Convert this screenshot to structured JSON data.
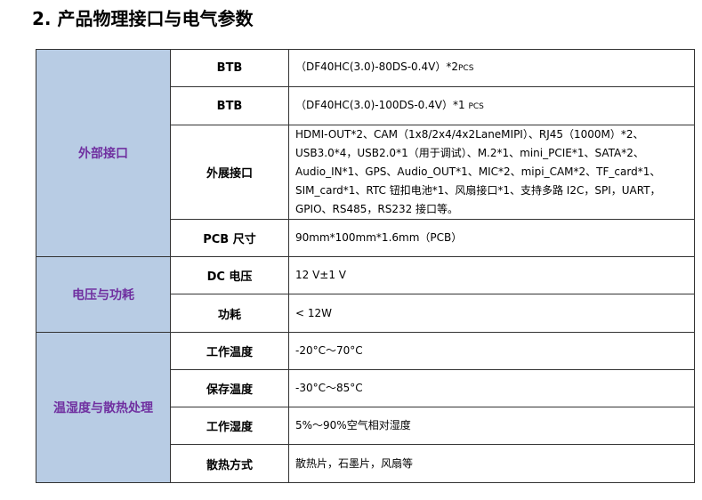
{
  "title": "2. 产品物理接口与电气参数",
  "groups": [
    {
      "category": "外部接口",
      "rows": [
        {
          "key": "BTB",
          "value": "（DF40HC(3.0)-80DS-0.4V）*2",
          "unit": "PCS"
        },
        {
          "key": "BTB",
          "value": "（DF40HC(3.0)-100DS-0.4V）*1 ",
          "unit": "PCS"
        },
        {
          "key": "外展接口",
          "value": "HDMI-OUT*2、CAM（1x8/2x4/4x2LaneMIPI）、RJ45（1000M）*2、USB3.0*4，USB2.0*1（用于调试）、M.2*1、mini_PCIE*1、SATA*2、Audio_IN*1、GPS、Audio_OUT*1、MIC*2、mipi_CAM*2、TF_card*1、SIM_card*1、RTC 钮扣电池*1、风扇接口*1、支持多路 I2C，SPI，UART，GPIO、RS485，RS232 接口等。"
        },
        {
          "key": "PCB 尺寸",
          "value": "90mm*100mm*1.6mm（PCB）"
        }
      ]
    },
    {
      "category": "电压与功耗",
      "rows": [
        {
          "key": "DC 电压",
          "value": "12 V±1 V"
        },
        {
          "key": "功耗",
          "value": "< 12W"
        }
      ]
    },
    {
      "category": "温湿度与散热处理",
      "rows": [
        {
          "key": "工作温度",
          "value": "-20°C～70°C"
        },
        {
          "key": "保存温度",
          "value": "-30°C～85°C"
        },
        {
          "key": "工作湿度",
          "value": "5%～90%空气相对湿度"
        },
        {
          "key": "散热方式",
          "value": "散热片，石墨片，风扇等"
        }
      ]
    }
  ]
}
